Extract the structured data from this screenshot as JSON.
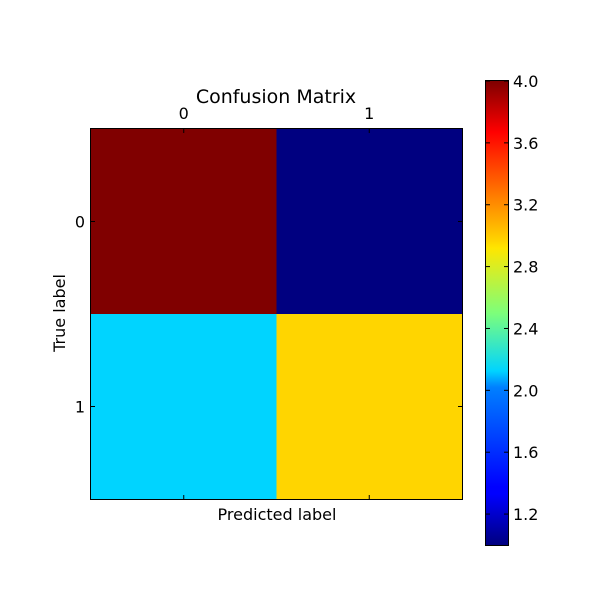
{
  "chart_data": {
    "type": "heatmap",
    "title": "Confusion Matrix",
    "xlabel": "Predicted label",
    "ylabel": "True label",
    "x_categories": [
      "0",
      "1"
    ],
    "y_categories": [
      "0",
      "1"
    ],
    "values": [
      [
        4,
        1
      ],
      [
        2,
        3
      ]
    ],
    "colormap": "jet",
    "colorbar": {
      "range": [
        1,
        4
      ],
      "ticks": [
        "1.2",
        "1.6",
        "2.0",
        "2.4",
        "2.8",
        "3.2",
        "3.6",
        "4.0"
      ],
      "tick_values": [
        1.2,
        1.6,
        2.0,
        2.4,
        2.8,
        3.2,
        3.6,
        4.0
      ]
    },
    "grid": false,
    "x_ticks_position": "top"
  }
}
